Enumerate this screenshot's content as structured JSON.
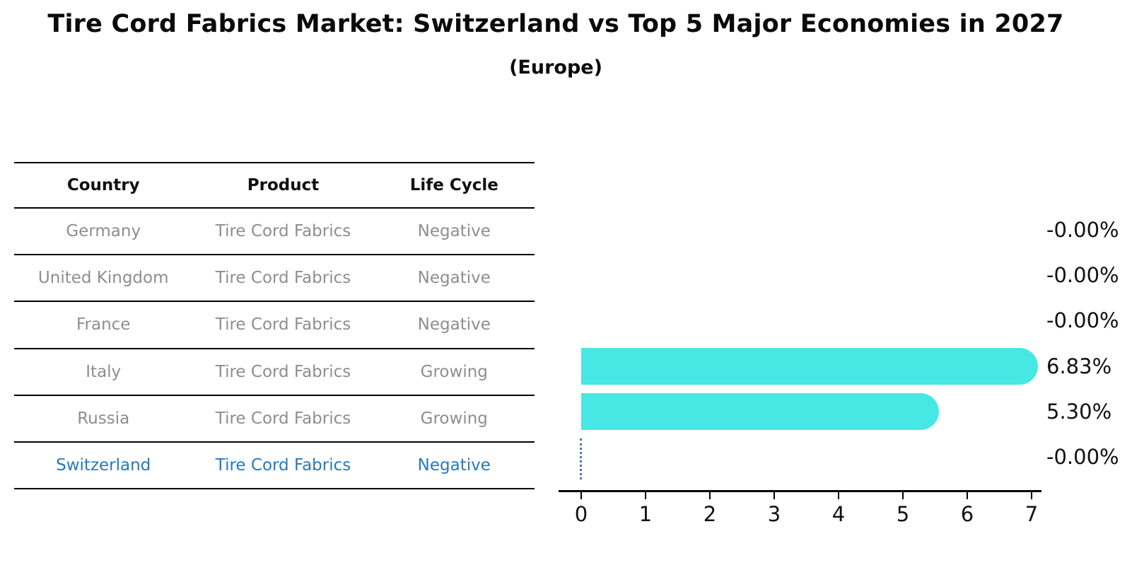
{
  "title": "Tire Cord Fabrics Market: Switzerland vs Top 5 Major Economies in 2027",
  "subtitle": "(Europe)",
  "table": {
    "headers": [
      "Country",
      "Product",
      "Life Cycle"
    ],
    "rows": [
      {
        "country": "Germany",
        "product": "Tire Cord Fabrics",
        "life_cycle": "Negative"
      },
      {
        "country": "United Kingdom",
        "product": "Tire Cord Fabrics",
        "life_cycle": "Negative"
      },
      {
        "country": "France",
        "product": "Tire Cord Fabrics",
        "life_cycle": "Negative"
      },
      {
        "country": "Italy",
        "product": "Tire Cord Fabrics",
        "life_cycle": "Growing"
      },
      {
        "country": "Russia",
        "product": "Tire Cord Fabrics",
        "life_cycle": "Growing"
      },
      {
        "country": "Switzerland",
        "product": "Tire Cord Fabrics",
        "life_cycle": "Negative",
        "highlighted": true
      }
    ]
  },
  "chart_data": {
    "type": "bar",
    "orientation": "horizontal",
    "categories": [
      "Germany",
      "United Kingdom",
      "France",
      "Italy",
      "Russia",
      "Switzerland"
    ],
    "values": [
      -0.0,
      -0.0,
      -0.0,
      6.83,
      5.3,
      -0.0
    ],
    "value_labels": [
      "-0.00%",
      "-0.00%",
      "-0.00%",
      "6.83%",
      "5.30%",
      "-0.00%"
    ],
    "x_ticks": [
      0,
      1,
      2,
      3,
      4,
      5,
      6,
      7
    ],
    "xlim": [
      0,
      7.15
    ],
    "grid": false,
    "legend": false,
    "bar_color": "#47e8e3",
    "highlight_text_color": "#2878be",
    "zero_marker": {
      "country": "Switzerland",
      "style": "dotted-vertical-line-at-0",
      "color": "#4478ad"
    }
  }
}
